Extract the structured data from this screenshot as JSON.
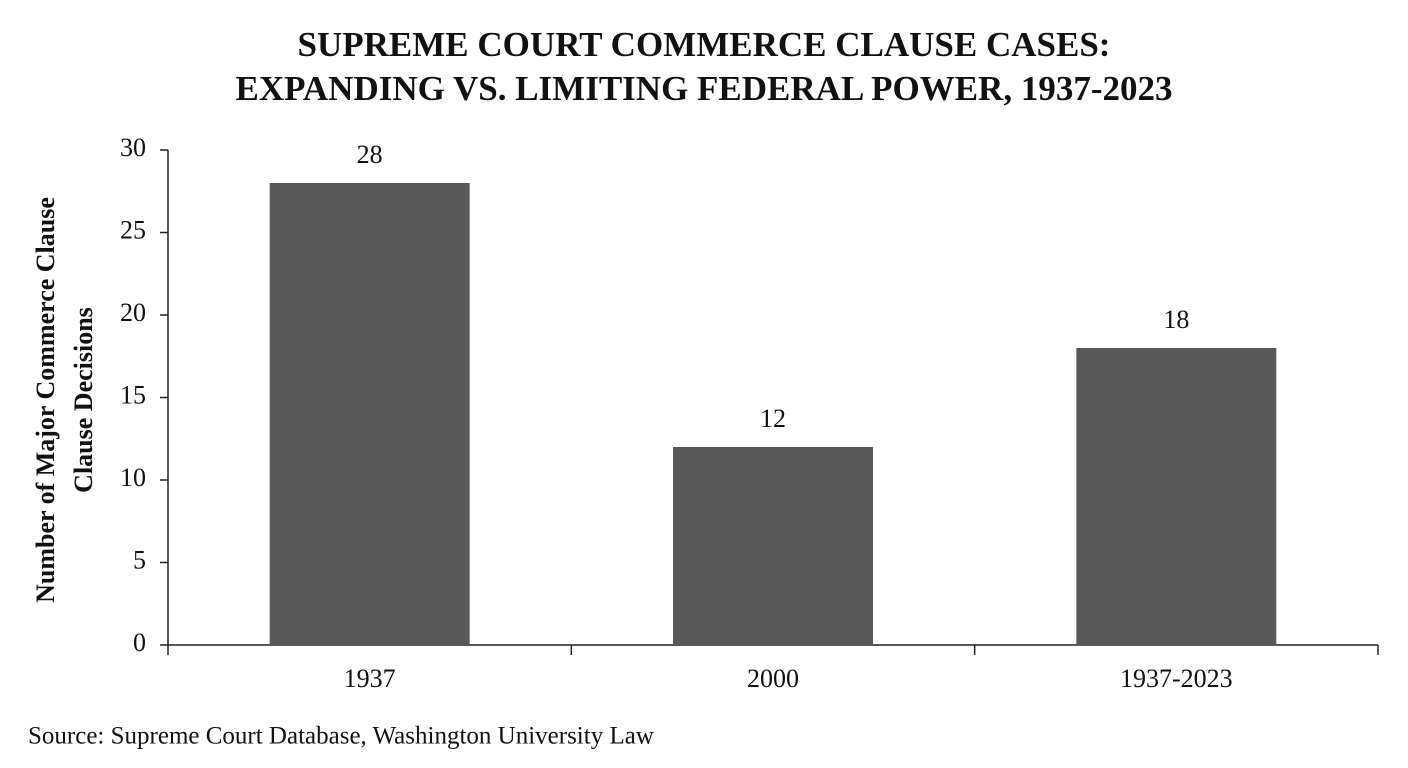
{
  "chart_data": {
    "type": "bar",
    "title": [
      "SUPREME COURT COMMERCE CLAUSE CASES:",
      "EXPANDING VS. LIMITING FEDERAL POWER, 1937-2023"
    ],
    "y_label": [
      "Number of Major Commerce Clause",
      "Clause Decisions"
    ],
    "categories": [
      "1937",
      "2000",
      "1937-2023"
    ],
    "values": [
      28,
      12,
      18
    ],
    "color": "#595959",
    "ylim": [
      0,
      30
    ],
    "yticks": [
      0,
      5,
      10,
      15,
      20,
      25,
      30
    ],
    "source": "Source: Supreme Court Database, Washington University Law"
  }
}
